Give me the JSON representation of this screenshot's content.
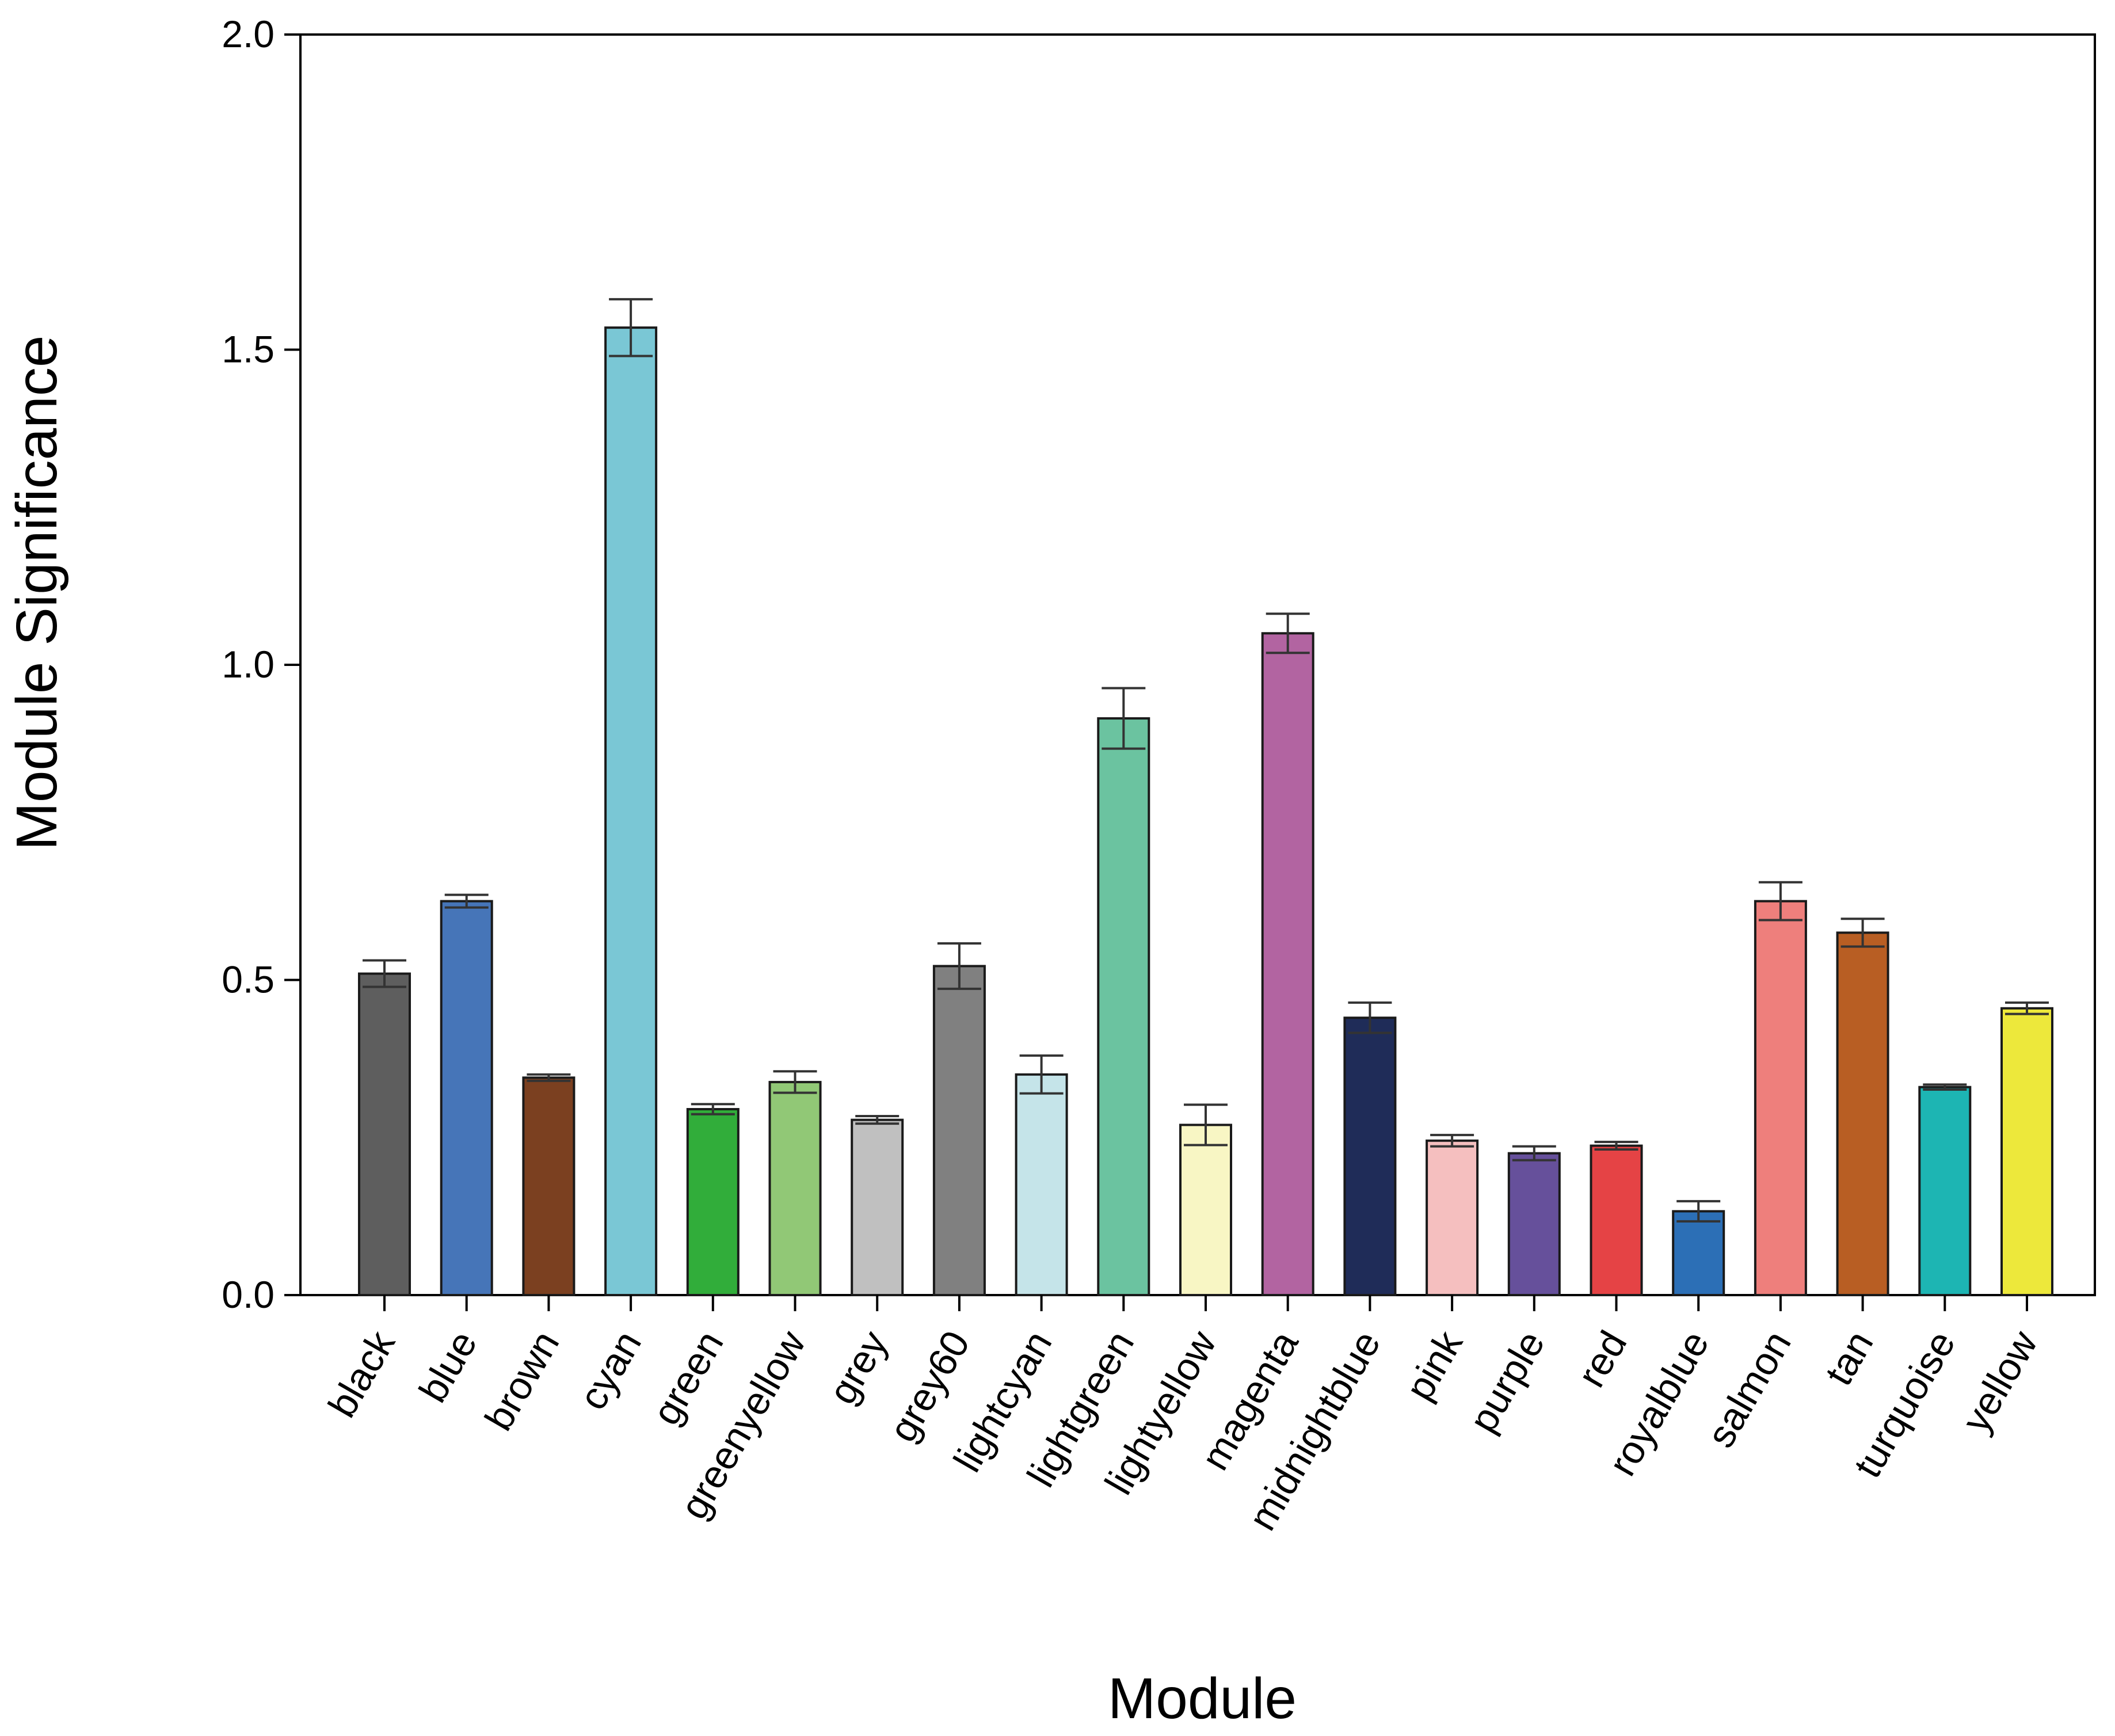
{
  "chart_data": {
    "type": "bar",
    "title": "",
    "xlabel": "Module",
    "ylabel": "Module Significance",
    "ylim": [
      0,
      2.0
    ],
    "yticks": [
      "0.0",
      "0.5",
      "1.0",
      "1.5",
      "2.0"
    ],
    "grid": false,
    "categories": [
      "black",
      "blue",
      "brown",
      "cyan",
      "green",
      "greenyellow",
      "grey",
      "grey60",
      "lightcyan",
      "lightgreen",
      "lightyellow",
      "magenta",
      "midnightblue",
      "pink",
      "purple",
      "red",
      "royalblue",
      "salmon",
      "tan",
      "turquoise",
      "yellow"
    ],
    "values": [
      0.51,
      0.625,
      0.345,
      1.535,
      0.295,
      0.338,
      0.278,
      0.522,
      0.35,
      0.915,
      0.27,
      1.05,
      0.44,
      0.245,
      0.225,
      0.237,
      0.133,
      0.625,
      0.575,
      0.33,
      0.455
    ],
    "errors": [
      0.021,
      0.01,
      0.005,
      0.045,
      0.008,
      0.017,
      0.006,
      0.036,
      0.03,
      0.048,
      0.032,
      0.031,
      0.024,
      0.009,
      0.011,
      0.006,
      0.016,
      0.03,
      0.022,
      0.004,
      0.009
    ],
    "colors": [
      "#5e5e5e",
      "#4675b8",
      "#7b4020",
      "#7ac7d5",
      "#31ad3a",
      "#91c876",
      "#c0c0c0",
      "#808080",
      "#c5e4e9",
      "#6bc3a0",
      "#f8f6c4",
      "#b264a1",
      "#1f2c58",
      "#f5bfbf",
      "#66509b",
      "#e54345",
      "#2c6fb6",
      "#ee7f7c",
      "#b85e23",
      "#1db5b3",
      "#ede83b"
    ]
  }
}
